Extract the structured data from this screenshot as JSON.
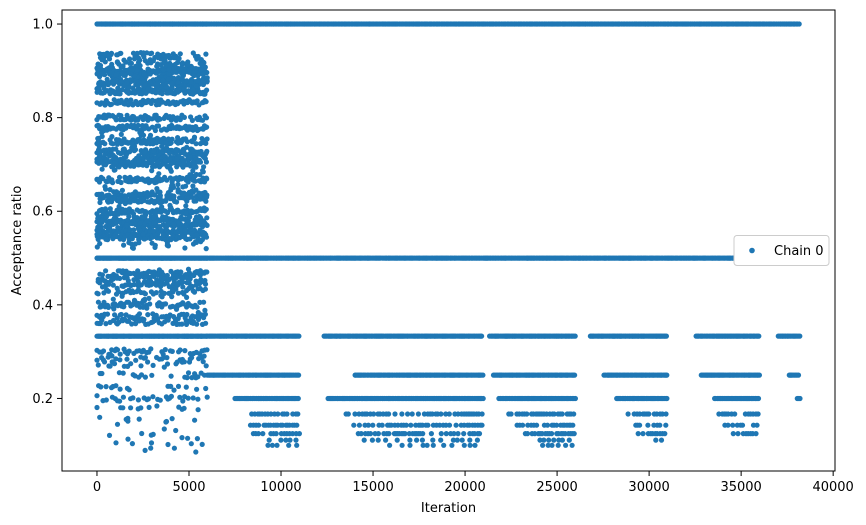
{
  "chart_data": {
    "type": "scatter",
    "xlabel": "Iteration",
    "ylabel": "Acceptance ratio",
    "xlim": [
      -1900,
      40100
    ],
    "ylim": [
      0.045,
      1.03
    ],
    "x_ticks": [
      0,
      5000,
      10000,
      15000,
      20000,
      25000,
      30000,
      35000,
      40000
    ],
    "x_tick_labels": [
      "0",
      "5000",
      "10000",
      "15000",
      "20000",
      "25000",
      "30000",
      "35000",
      "40000"
    ],
    "y_ticks": [
      0.2,
      0.4,
      0.6,
      0.8,
      1.0
    ],
    "y_tick_labels": [
      "0.2",
      "0.4",
      "0.6",
      "0.8",
      "1.0"
    ],
    "grid": false,
    "legend": {
      "placement": "center-right",
      "entries": [
        "Chain 0"
      ]
    },
    "marker_color": "#1f77b4",
    "series": [
      {
        "name": "Chain 0",
        "x_range": [
          0,
          38200
        ],
        "levels": [
          {
            "y": 1.0,
            "x_from": 0,
            "x_to": 38200,
            "density": "dense"
          },
          {
            "y": 0.5,
            "x_from": 0,
            "x_to": 38200,
            "density": "dense"
          },
          {
            "y": 0.3333,
            "x_from": 0,
            "x_to": 38200,
            "density": "dense",
            "gaps": [
              [
                11000,
                12300
              ],
              [
                20900,
                21300
              ],
              [
                26000,
                26800
              ],
              [
                31000,
                32500
              ],
              [
                36000,
                37000
              ]
            ]
          },
          {
            "y": 0.25,
            "x_from": 6000,
            "x_to": 38200,
            "density": "dense",
            "gaps": [
              [
                11000,
                14000
              ],
              [
                21000,
                21500
              ],
              [
                26000,
                27500
              ],
              [
                31000,
                32800
              ],
              [
                36000,
                37600
              ]
            ]
          },
          {
            "y": 0.2,
            "x_from": 7500,
            "x_to": 38200,
            "density": "dense",
            "gaps": [
              [
                11000,
                12500
              ],
              [
                21000,
                21800
              ],
              [
                26000,
                28200
              ],
              [
                31000,
                33500
              ],
              [
                36000,
                38000
              ]
            ]
          },
          {
            "y": 0.1667,
            "x_from": 8000,
            "x_to": 38200,
            "density": "medium",
            "gaps": [
              [
                11000,
                13500
              ],
              [
                21000,
                22300
              ],
              [
                26000,
                28800
              ],
              [
                31000,
                33600
              ],
              [
                36000,
                38000
              ]
            ]
          },
          {
            "y": 0.1429,
            "x_from": 8000,
            "x_to": 36000,
            "density": "medium",
            "gaps": [
              [
                11000,
                13800
              ],
              [
                21000,
                22800
              ],
              [
                26000,
                29000
              ],
              [
                31000,
                34000
              ]
            ]
          },
          {
            "y": 0.125,
            "x_from": 8500,
            "x_to": 36000,
            "density": "medium",
            "gaps": [
              [
                11000,
                14200
              ],
              [
                21000,
                23000
              ],
              [
                26000,
                29300
              ],
              [
                31000,
                34300
              ]
            ]
          },
          {
            "y": 0.1111,
            "x_from": 9000,
            "x_to": 31000,
            "density": "sparse",
            "gaps": [
              [
                11000,
                14500
              ],
              [
                21000,
                23500
              ],
              [
                26000,
                30000
              ]
            ]
          },
          {
            "y": 0.1,
            "x_from": 9000,
            "x_to": 26000,
            "density": "sparse",
            "gaps": [
              [
                11000,
                15000
              ],
              [
                21000,
                24000
              ]
            ]
          }
        ],
        "early_phase": {
          "x_from": 0,
          "x_to": 6000,
          "y_from": 0.07,
          "y_to": 0.94,
          "description": "broad scatter over many acceptance levels for the first ~6000 iterations"
        }
      }
    ]
  }
}
